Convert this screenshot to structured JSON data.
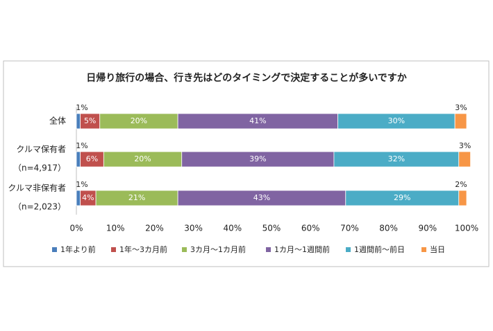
{
  "chart_data": {
    "type": "stacked-bar-horizontal",
    "title": "日帰り旅行の場合、行き先はどのタイミングで決定することが多いですか",
    "categories": [
      [
        "全体"
      ],
      [
        "クルマ保有者",
        "（n=4,917）"
      ],
      [
        "クルマ非保有者",
        "（n=2,023）"
      ]
    ],
    "series": [
      {
        "name": "1年より前",
        "color": "#4a7ebb",
        "values": [
          1,
          1,
          1
        ],
        "value_labels": [
          "1%",
          "1%",
          "1%"
        ]
      },
      {
        "name": "1年～3カ月前",
        "color": "#c0504d",
        "values": [
          5,
          6,
          4
        ],
        "value_labels": [
          "5%",
          "6%",
          "4%"
        ]
      },
      {
        "name": "3カ月～1カ月前",
        "color": "#9bbb59",
        "values": [
          20,
          20,
          21
        ],
        "value_labels": [
          "20%",
          "20%",
          "21%"
        ]
      },
      {
        "name": "1カ月～1週間前",
        "color": "#8064a2",
        "values": [
          41,
          39,
          43
        ],
        "value_labels": [
          "41%",
          "39%",
          "43%"
        ]
      },
      {
        "name": "1週間前～前日",
        "color": "#4bacc6",
        "values": [
          30,
          32,
          29
        ],
        "value_labels": [
          "30%",
          "32%",
          "29%"
        ]
      },
      {
        "name": "当日",
        "color": "#f79646",
        "values": [
          3,
          3,
          2
        ],
        "value_labels": [
          "3%",
          "3%",
          "2%"
        ]
      }
    ],
    "xlim": [
      0,
      100
    ],
    "xticks": [
      {
        "value": 0,
        "label": "0%"
      },
      {
        "value": 10,
        "label": "10%"
      },
      {
        "value": 20,
        "label": "20%"
      },
      {
        "value": 30,
        "label": "30%"
      },
      {
        "value": 40,
        "label": "40%"
      },
      {
        "value": 50,
        "label": "50%"
      },
      {
        "value": 60,
        "label": "60%"
      },
      {
        "value": 70,
        "label": "70%"
      },
      {
        "value": 80,
        "label": "80%"
      },
      {
        "value": 90,
        "label": "90%"
      },
      {
        "value": 100,
        "label": "100%"
      }
    ],
    "grid": false
  }
}
